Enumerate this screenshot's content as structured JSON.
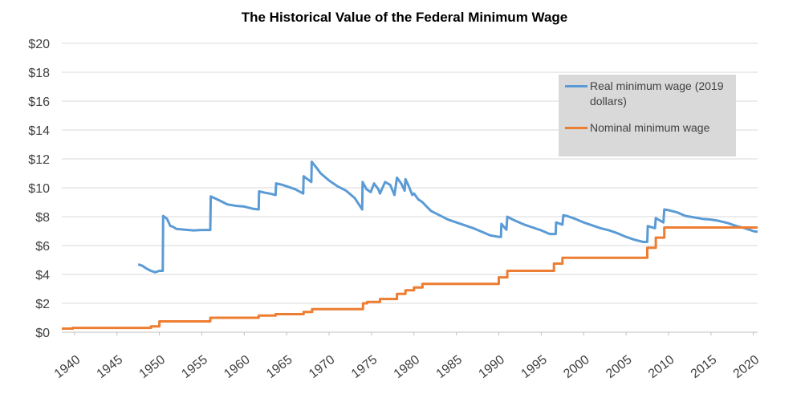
{
  "chart_data": {
    "type": "line",
    "title": "The Historical Value of the Federal Minimum Wage",
    "xlabel": "",
    "ylabel": "",
    "xlim": [
      1938.5,
      2020.5
    ],
    "ylim": [
      0,
      20
    ],
    "y_ticks": [
      "$0",
      "$2",
      "$4",
      "$6",
      "$8",
      "$10",
      "$12",
      "$14",
      "$16",
      "$18",
      "$20"
    ],
    "x_ticks": [
      "1940",
      "1945",
      "1950",
      "1955",
      "1960",
      "1965",
      "1970",
      "1975",
      "1980",
      "1985",
      "1990",
      "1995",
      "2000",
      "2005",
      "2010",
      "2015",
      "2020"
    ],
    "grid": "horizontal",
    "legend_position": "top-right",
    "series": [
      {
        "name": "Real minimum wage (2019 dollars)",
        "color": "#5b9bd5",
        "x": [
          1947.5,
          1948.0,
          1948.5,
          1949.0,
          1949.5,
          1950.0,
          1950.4,
          1950.45,
          1950.9,
          1951.1,
          1951.3,
          1951.6,
          1952.0,
          1953.0,
          1954.0,
          1955.0,
          1956.0,
          1956.05,
          1956.8,
          1957.5,
          1958.0,
          1959.0,
          1960.0,
          1961.0,
          1961.7,
          1961.75,
          1962.5,
          1963.0,
          1963.7,
          1963.75,
          1964.5,
          1965.0,
          1966.0,
          1966.95,
          1967.0,
          1967.9,
          1967.95,
          1968.5,
          1969.0,
          1970.0,
          1971.0,
          1972.0,
          1973.0,
          1973.9,
          1973.95,
          1974.4,
          1974.9,
          1975.3,
          1975.8,
          1976.0,
          1976.6,
          1977.2,
          1977.7,
          1978.0,
          1978.5,
          1978.9,
          1979.0,
          1979.4,
          1979.8,
          1980.0,
          1980.5,
          1981.0,
          1981.5,
          1982.0,
          1983.0,
          1984.0,
          1985.0,
          1986.0,
          1987.0,
          1988.0,
          1989.0,
          1990.0,
          1990.25,
          1990.3,
          1990.9,
          1991.0,
          1991.3,
          1992.0,
          1993.0,
          1994.0,
          1995.0,
          1996.0,
          1996.7,
          1996.75,
          1997.5,
          1997.6,
          1998.0,
          1999.0,
          2000.0,
          2001.0,
          2002.0,
          2003.0,
          2004.0,
          2005.0,
          2006.0,
          2007.0,
          2007.5,
          2007.55,
          2008.4,
          2008.5,
          2009.4,
          2009.5,
          2010.0,
          2011.0,
          2012.0,
          2013.0,
          2014.0,
          2015.0,
          2016.0,
          2017.0,
          2018.0,
          2019.0,
          2019.5,
          2020.0,
          2020.5
        ],
        "y": [
          4.7,
          4.6,
          4.4,
          4.25,
          4.15,
          4.25,
          4.25,
          8.05,
          7.85,
          7.6,
          7.35,
          7.3,
          7.15,
          7.1,
          7.05,
          7.08,
          7.08,
          9.4,
          9.2,
          9.0,
          8.85,
          8.75,
          8.7,
          8.55,
          8.5,
          9.75,
          9.65,
          9.6,
          9.5,
          10.3,
          10.2,
          10.1,
          9.9,
          9.6,
          10.8,
          10.4,
          11.8,
          11.4,
          11.0,
          10.5,
          10.1,
          9.8,
          9.3,
          8.5,
          10.4,
          9.9,
          9.7,
          10.3,
          9.9,
          9.6,
          10.4,
          10.2,
          9.5,
          10.7,
          10.3,
          9.8,
          10.6,
          10.1,
          9.5,
          9.6,
          9.2,
          9.0,
          8.7,
          8.4,
          8.1,
          7.8,
          7.6,
          7.4,
          7.2,
          6.95,
          6.7,
          6.6,
          6.6,
          7.5,
          7.1,
          8.0,
          7.9,
          7.7,
          7.45,
          7.25,
          7.05,
          6.8,
          6.8,
          7.6,
          7.45,
          8.1,
          8.05,
          7.85,
          7.6,
          7.4,
          7.2,
          7.05,
          6.85,
          6.6,
          6.4,
          6.25,
          6.25,
          7.35,
          7.2,
          7.9,
          7.6,
          8.5,
          8.45,
          8.3,
          8.05,
          7.95,
          7.85,
          7.8,
          7.7,
          7.55,
          7.35,
          7.2,
          7.1,
          7.0,
          6.95
        ]
      },
      {
        "name": "Nominal minimum wage",
        "color": "#ed7d31",
        "step": true,
        "x": [
          1938.5,
          1939.8,
          1945.0,
          1949.0,
          1950.0,
          1956.0,
          1961.7,
          1963.7,
          1967.0,
          1968.0,
          1974.0,
          1974.5,
          1975.0,
          1976.0,
          1978.0,
          1979.0,
          1980.0,
          1981.0,
          1990.0,
          1990.5,
          1991.0,
          1996.5,
          1997.5,
          2007.5,
          2008.5,
          2009.5,
          2020.5
        ],
        "y": [
          0.25,
          0.3,
          0.3,
          0.4,
          0.75,
          1.0,
          1.15,
          1.25,
          1.4,
          1.6,
          2.0,
          2.1,
          2.1,
          2.3,
          2.65,
          2.9,
          3.1,
          3.35,
          3.8,
          3.8,
          4.25,
          4.75,
          5.15,
          5.85,
          6.55,
          7.25,
          7.25
        ]
      }
    ]
  }
}
